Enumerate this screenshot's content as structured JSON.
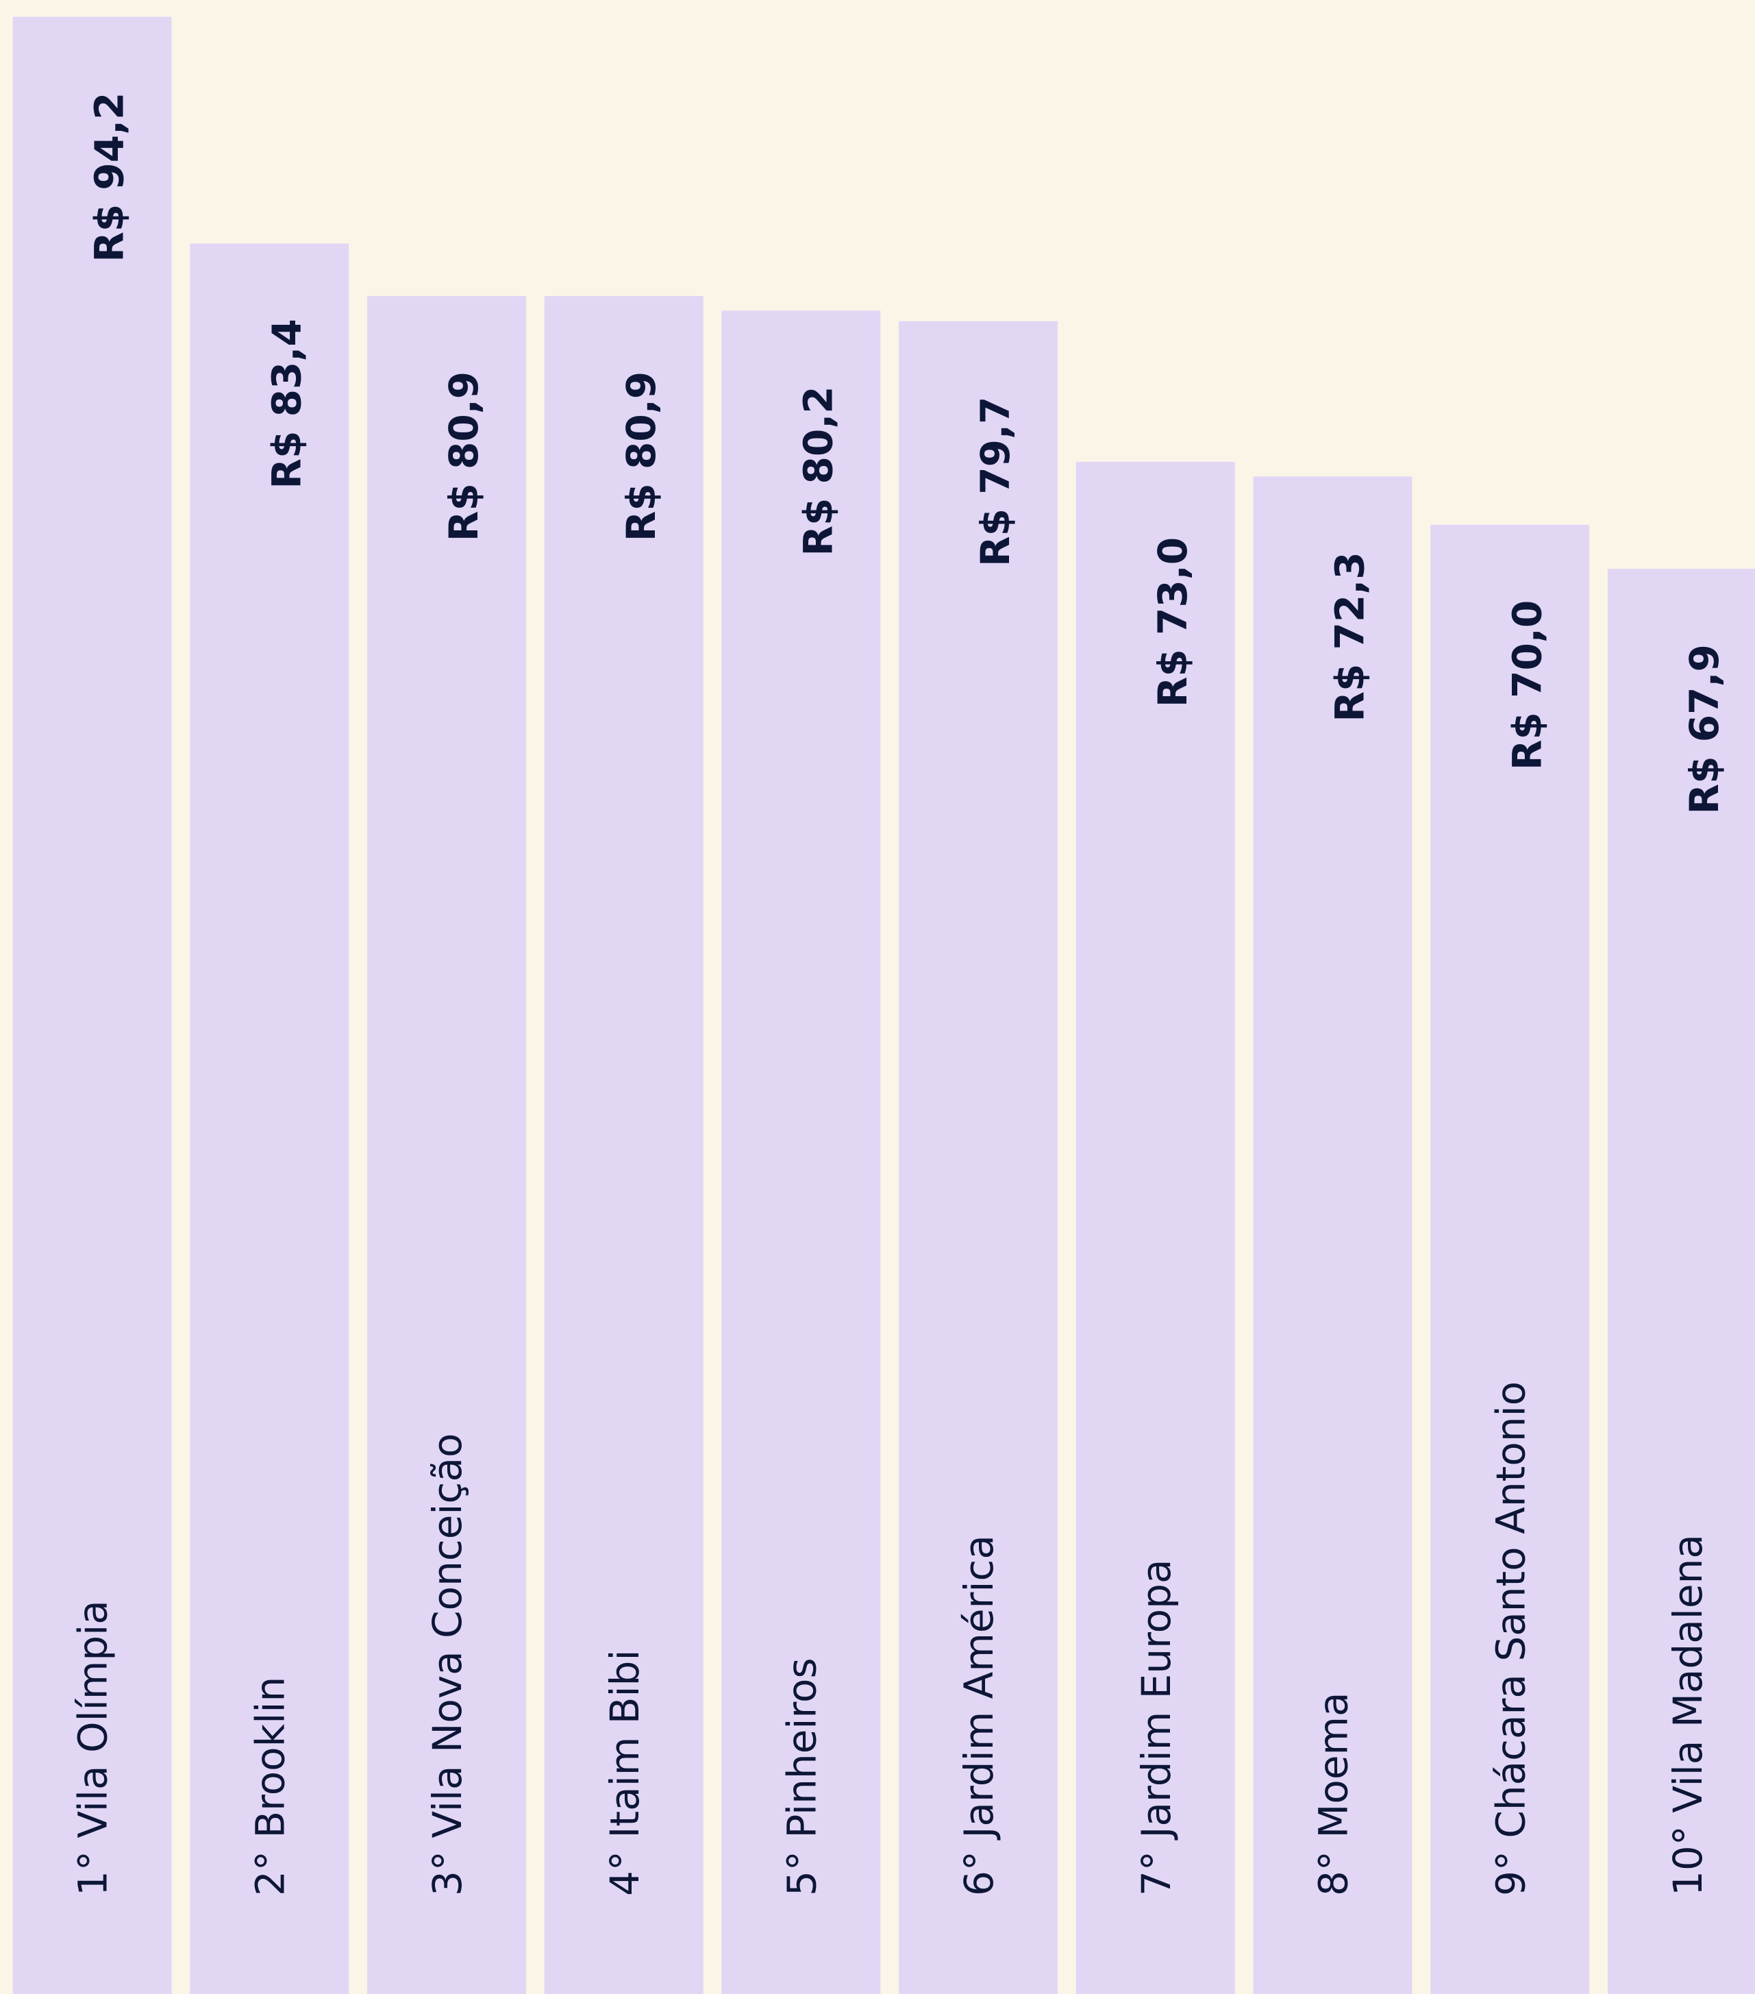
{
  "chart_data": {
    "type": "bar",
    "categories": [
      "1° Vila Olímpia",
      "2° Brooklin",
      "3° Vila Nova Conceição",
      "4° Itaim Bibi",
      "5° Pinheiros",
      "6° Jardim América",
      "7° Jardim Europa",
      "8° Moema",
      "9° Chácara Santo Antonio",
      "10° Vila Madalena"
    ],
    "values": [
      94.2,
      83.4,
      80.9,
      80.9,
      80.2,
      79.7,
      73.0,
      72.3,
      70.0,
      67.9
    ],
    "value_labels": [
      "R$ 94,2",
      "R$ 83,4",
      "R$ 80,9",
      "R$ 80,9",
      "R$ 80,2",
      "R$ 79,7",
      "R$ 73,0",
      "R$ 72,3",
      "R$ 70,0",
      "R$ 67,9"
    ],
    "color": "#e1d7f5",
    "ylim": [
      0,
      95
    ]
  }
}
